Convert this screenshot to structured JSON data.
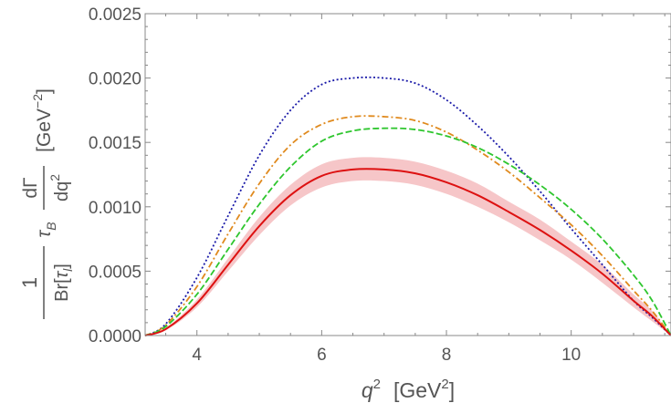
{
  "chart_data": {
    "type": "line",
    "title": "",
    "xlabel": {
      "var": "q",
      "sup": "2",
      "unit_open": "[GeV",
      "unit_sup": "2",
      "unit_close": "]"
    },
    "ylabel": {
      "frac1_num": "1",
      "frac1_den_a": "Br[",
      "frac1_den_tau": "τ",
      "frac1_den_sub": "l",
      "frac1_den_b": "]",
      "tau": "τ",
      "tau_sub": "B",
      "frac2_num": "dΓ",
      "frac2_den": "dq",
      "frac2_den_sup": "2",
      "unit": "[GeV",
      "unit_sup": "−2",
      "unit_close": "]"
    },
    "xlim": [
      3.17,
      11.6
    ],
    "ylim": [
      0,
      0.0025
    ],
    "xticks": [
      4,
      6,
      8,
      10
    ],
    "xtick_labels": [
      "4",
      "6",
      "8",
      "10"
    ],
    "yticks": [
      0,
      0.0005,
      0.001,
      0.0015,
      0.002,
      0.0025
    ],
    "ytick_labels": [
      "0.0000",
      "0.0005",
      "0.0010",
      "0.0015",
      "0.0020",
      "0.0025"
    ],
    "grid": false,
    "legend": "none",
    "x": [
      3.17,
      3.5,
      4.0,
      4.5,
      5.0,
      5.5,
      6.0,
      6.5,
      7.0,
      7.5,
      8.0,
      8.5,
      9.0,
      9.5,
      10.0,
      10.5,
      11.0,
      11.3,
      11.6
    ],
    "series": [
      {
        "name": "blue-dotted",
        "color": "#1a1aa8",
        "dash": "2,2.5",
        "width": 1.8,
        "values": [
          0,
          9e-05,
          0.00045,
          0.00093,
          0.0014,
          0.00175,
          0.00195,
          0.002,
          0.002,
          0.00196,
          0.00183,
          0.00163,
          0.00139,
          0.00112,
          0.00083,
          0.00055,
          0.00027,
          0.00014,
          0
        ]
      },
      {
        "name": "orange-dashdot",
        "color": "#e08a1e",
        "dash": "7,3,2,3",
        "width": 1.8,
        "values": [
          0,
          8e-05,
          0.00038,
          0.00079,
          0.00118,
          0.00148,
          0.00164,
          0.0017,
          0.0017,
          0.00167,
          0.00158,
          0.00144,
          0.00127,
          0.00107,
          0.00086,
          0.00062,
          0.00035,
          0.00019,
          0
        ]
      },
      {
        "name": "green-dashed",
        "color": "#2ec62e",
        "dash": "7,3",
        "width": 1.8,
        "values": [
          0,
          7e-05,
          0.00032,
          0.00067,
          0.00102,
          0.00131,
          0.00151,
          0.00159,
          0.00161,
          0.0016,
          0.00155,
          0.00146,
          0.00133,
          0.00117,
          0.00098,
          0.00075,
          0.00047,
          0.00027,
          0
        ]
      },
      {
        "name": "red-solid",
        "color": "#dd1111",
        "dash": "",
        "width": 2,
        "values": [
          0,
          5e-05,
          0.00025,
          0.00055,
          0.00085,
          0.00109,
          0.00124,
          0.00129,
          0.00129,
          0.00126,
          0.00119,
          0.00109,
          0.00096,
          0.00082,
          0.00066,
          0.00048,
          0.00027,
          0.00015,
          0
        ],
        "band": {
          "color": "#f6c6c8",
          "lower": [
            0,
            4e-05,
            0.00022,
            0.0005,
            0.00078,
            0.00101,
            0.00115,
            0.0012,
            0.0012,
            0.00117,
            0.0011,
            0.001,
            0.00088,
            0.00074,
            0.00059,
            0.00041,
            0.00022,
            0.00011,
            0
          ],
          "upper": [
            0,
            6e-05,
            0.00028,
            0.0006,
            0.00092,
            0.00117,
            0.00133,
            0.00138,
            0.00138,
            0.00135,
            0.00128,
            0.00118,
            0.00104,
            0.0009,
            0.00073,
            0.00055,
            0.00032,
            0.00019,
            0
          ]
        }
      }
    ]
  }
}
